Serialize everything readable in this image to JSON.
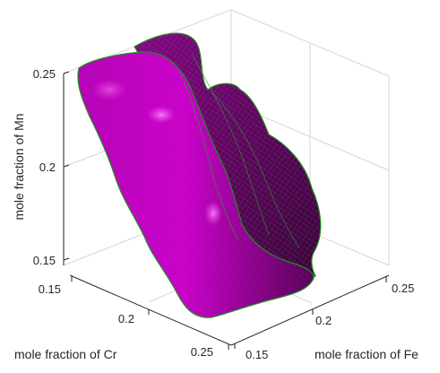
{
  "chart_data": {
    "type": "surface3d",
    "title": "",
    "xlabel": "mole fraction of Fe",
    "ylabel": "mole fraction of Cr",
    "zlabel": "mole fraction of Mn",
    "x_ticks": [
      "0.15",
      "0.2",
      "0.25"
    ],
    "y_ticks": [
      "0.15",
      "0.2",
      "0.25"
    ],
    "z_ticks": [
      "0.15",
      "0.2",
      "0.25"
    ],
    "xlim": [
      0.15,
      0.25
    ],
    "ylim": [
      0.15,
      0.25
    ],
    "zlim": [
      0.15,
      0.25
    ],
    "grid": true,
    "surface_color": "#cc00cc",
    "highlight_color": "#ee44ee",
    "mesh_color": "#22aa22",
    "box_color": "#c8c8c8"
  }
}
